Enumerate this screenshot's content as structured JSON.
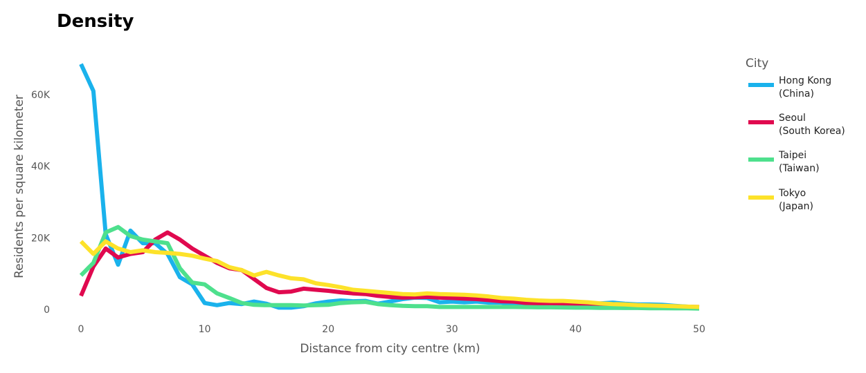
{
  "chart_data": {
    "type": "line",
    "title": "Density",
    "xlabel": "Distance from city centre (km)",
    "ylabel": "Residents per square kilometer",
    "xlim": [
      0,
      50
    ],
    "ylim": [
      0,
      70000
    ],
    "x_ticks": [
      0,
      10,
      20,
      30,
      40,
      50
    ],
    "x_tick_labels": [
      "0",
      "10",
      "20",
      "30",
      "40",
      "50"
    ],
    "y_ticks": [
      0,
      20000,
      40000,
      60000
    ],
    "y_tick_labels": [
      "0",
      "20K",
      "40K",
      "60K"
    ],
    "grid": false,
    "legend": {
      "title": "City",
      "placement": "right",
      "entries": [
        {
          "name": "Hong Kong (China)",
          "lines": [
            "Hong Kong",
            "(China)"
          ]
        },
        {
          "name": "Seoul (South Korea)",
          "lines": [
            "Seoul",
            "(South Korea)"
          ]
        },
        {
          "name": "Taipei (Taiwan)",
          "lines": [
            "Taipei",
            "(Taiwan)"
          ]
        },
        {
          "name": "Tokyo (Japan)",
          "lines": [
            "Tokyo",
            "(Japan)"
          ]
        }
      ]
    },
    "x": [
      0,
      1,
      2,
      3,
      4,
      5,
      6,
      7,
      8,
      9,
      10,
      11,
      12,
      13,
      14,
      15,
      16,
      17,
      18,
      19,
      20,
      21,
      22,
      23,
      24,
      25,
      26,
      27,
      28,
      29,
      30,
      31,
      32,
      33,
      34,
      35,
      36,
      37,
      38,
      39,
      40,
      41,
      42,
      43,
      44,
      45,
      46,
      47,
      48,
      49,
      50
    ],
    "series": [
      {
        "name": "Hong Kong (China)",
        "color": "#1ab2ec",
        "values": [
          68500,
          61000,
          21000,
          12500,
          22000,
          18500,
          18500,
          15500,
          9000,
          7000,
          1800,
          1200,
          1800,
          1500,
          2200,
          1600,
          500,
          500,
          900,
          1700,
          2200,
          2500,
          2300,
          2400,
          1600,
          2200,
          2900,
          3300,
          3200,
          2000,
          2200,
          2000,
          2200,
          1900,
          1900,
          1400,
          1200,
          1100,
          1000,
          1100,
          1100,
          1400,
          1700,
          1900,
          1600,
          1400,
          1400,
          1300,
          1000,
          800,
          600
        ]
      },
      {
        "name": "Seoul (South Korea)",
        "color": "#e0094f",
        "values": [
          3800,
          12000,
          17000,
          14500,
          15500,
          16000,
          19500,
          21500,
          19500,
          17000,
          15000,
          13000,
          11500,
          11000,
          8500,
          6000,
          4800,
          5000,
          5800,
          5500,
          5200,
          4800,
          4500,
          4300,
          3800,
          3500,
          3300,
          3400,
          3500,
          3300,
          3200,
          3000,
          2900,
          2600,
          2300,
          2200,
          1800,
          1700,
          1600,
          1500,
          1400,
          1300,
          1200,
          1100,
          1000,
          950,
          900,
          850,
          800,
          750,
          700
        ]
      },
      {
        "name": "Taipei (Taiwan)",
        "color": "#4ee08d",
        "values": [
          9500,
          13000,
          21500,
          23000,
          20500,
          19500,
          19000,
          18500,
          11500,
          7500,
          7000,
          4500,
          3200,
          1800,
          1300,
          1200,
          1200,
          1200,
          1100,
          1200,
          1300,
          1800,
          2000,
          2100,
          1500,
          1200,
          1000,
          900,
          900,
          700,
          700,
          700,
          700,
          700,
          700,
          700,
          650,
          600,
          600,
          550,
          500,
          500,
          450,
          450,
          400,
          400,
          350,
          350,
          300,
          300,
          250
        ]
      },
      {
        "name": "Tokyo (Japan)",
        "color": "#fde22a",
        "values": [
          19000,
          15500,
          19000,
          17000,
          16000,
          16500,
          16000,
          15800,
          15500,
          15000,
          14200,
          13500,
          11800,
          11000,
          9500,
          10500,
          9500,
          8700,
          8400,
          7300,
          6800,
          6200,
          5500,
          5200,
          4900,
          4600,
          4300,
          4200,
          4500,
          4300,
          4200,
          4100,
          3900,
          3600,
          3200,
          3000,
          2700,
          2500,
          2400,
          2400,
          2200,
          2000,
          1700,
          1500,
          1400,
          1200,
          1100,
          1000,
          900,
          800,
          700
        ]
      }
    ]
  }
}
